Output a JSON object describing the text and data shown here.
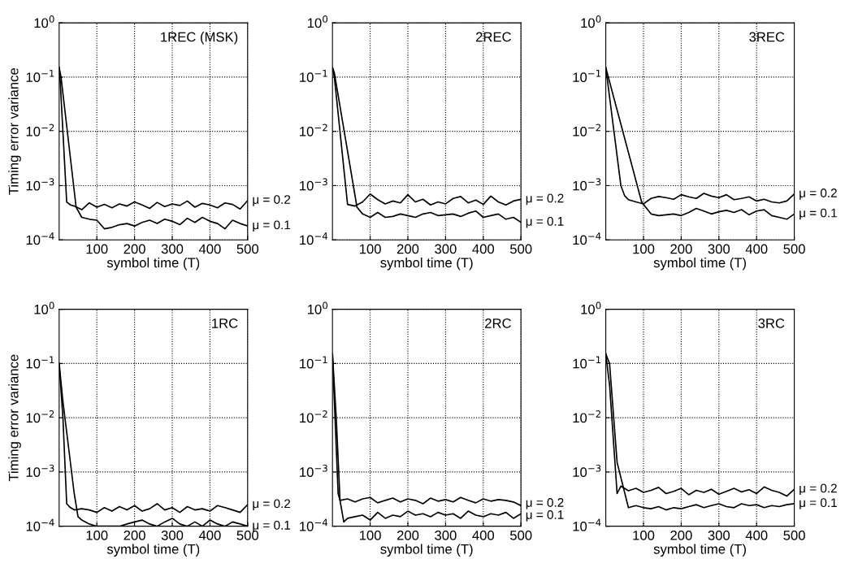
{
  "chart_data": [
    {
      "type": "line",
      "title": "1REC (MSK)",
      "xlabel": "symbol time (T)",
      "ylabel": "Timing error variance",
      "log": "y",
      "grid": true,
      "line_style": "solid",
      "xlim": [
        0,
        500
      ],
      "xticks": [
        100,
        200,
        300,
        400,
        500
      ],
      "ylim": [
        0.0001,
        1
      ],
      "yticks": [
        {
          "value": 0.0001,
          "label": "10$^{−4}$"
        },
        {
          "value": 0.001,
          "label": "10$^{−3}$"
        },
        {
          "value": 0.01,
          "label": "10$^{−2}$"
        },
        {
          "value": 0.1,
          "label": "10$^{−1}$"
        },
        {
          "value": 1,
          "label": "10$^{0}$"
        }
      ],
      "series": [
        {
          "color": "#000000",
          "x": [
            0,
            3,
            20,
            30,
            40,
            60,
            80,
            100,
            120,
            140,
            160,
            180,
            200,
            220,
            240,
            260,
            280,
            300,
            320,
            340,
            360,
            380,
            400,
            420,
            440,
            460,
            480,
            500
          ],
          "values": [
            0.15,
            0.08,
            0.0005,
            0.00044,
            0.00042,
            0.00036,
            0.00048,
            0.0004,
            0.00045,
            0.00039,
            0.00046,
            0.00042,
            0.0005,
            0.00044,
            0.00038,
            0.00049,
            0.00041,
            0.00046,
            0.00043,
            0.00052,
            0.0004,
            0.00047,
            0.00044,
            0.00039,
            0.00048,
            0.00045,
            0.00037,
            0.00053
          ]
        },
        {
          "color": "#000000",
          "x": [
            0,
            5,
            45,
            60,
            80,
            100,
            120,
            140,
            160,
            180,
            200,
            220,
            240,
            260,
            280,
            300,
            320,
            340,
            360,
            380,
            400,
            420,
            440,
            460,
            480,
            500
          ],
          "values": [
            0.15,
            0.1,
            0.0004,
            0.00026,
            0.00024,
            0.00023,
            0.00016,
            0.00017,
            0.00019,
            0.0002,
            0.00018,
            0.00021,
            0.00023,
            0.0002,
            0.00024,
            0.00022,
            0.00019,
            0.00025,
            0.00021,
            0.00026,
            0.00022,
            0.0002,
            0.00016,
            0.00023,
            0.0002,
            0.00018
          ]
        }
      ],
      "annotations": [
        "μ = 0.2",
        "μ = 0.1"
      ]
    },
    {
      "type": "line",
      "title": "2REC",
      "xlabel": "symbol time (T)",
      "log": "y",
      "grid": true,
      "line_style": "solid",
      "xlim": [
        0,
        500
      ],
      "xticks": [
        100,
        200,
        300,
        400,
        500
      ],
      "ylim": [
        0.0001,
        1
      ],
      "yticks": [
        {
          "value": 0.0001,
          "label": "10$^{−4}$"
        },
        {
          "value": 0.001,
          "label": "10$^{−3}$"
        },
        {
          "value": 0.01,
          "label": "10$^{−2}$"
        },
        {
          "value": 0.1,
          "label": "10$^{−1}$"
        },
        {
          "value": 1,
          "label": "10$^{0}$"
        }
      ],
      "series": [
        {
          "color": "#000000",
          "x": [
            0,
            5,
            40,
            60,
            80,
            100,
            120,
            140,
            160,
            180,
            200,
            220,
            240,
            260,
            280,
            300,
            320,
            340,
            360,
            380,
            400,
            420,
            440,
            460,
            480,
            500
          ],
          "values": [
            0.15,
            0.1,
            0.00045,
            0.00042,
            0.0005,
            0.0007,
            0.00055,
            0.00046,
            0.00052,
            0.00048,
            0.00068,
            0.0005,
            0.00056,
            0.00044,
            0.0005,
            0.00046,
            0.00058,
            0.00063,
            0.00048,
            0.00054,
            0.00045,
            0.00064,
            0.0005,
            0.00044,
            0.00052,
            0.00056
          ]
        },
        {
          "color": "#000000",
          "x": [
            0,
            5,
            65,
            80,
            100,
            120,
            140,
            160,
            180,
            200,
            220,
            240,
            260,
            280,
            300,
            320,
            340,
            360,
            380,
            400,
            420,
            440,
            460,
            480,
            500
          ],
          "values": [
            0.15,
            0.12,
            0.0004,
            0.0003,
            0.00026,
            0.00032,
            0.00026,
            0.00027,
            0.0003,
            0.00028,
            0.00026,
            0.0003,
            0.00032,
            0.00028,
            0.00029,
            0.0003,
            0.00027,
            0.00031,
            0.00034,
            0.00026,
            0.00028,
            0.0003,
            0.00024,
            0.00026,
            0.00021
          ]
        }
      ],
      "annotations": [
        "μ = 0.2",
        "μ = 0.1"
      ]
    },
    {
      "type": "line",
      "title": "3REC",
      "xlabel": "symbol time (T)",
      "log": "y",
      "grid": true,
      "line_style": "solid",
      "xlim": [
        0,
        500
      ],
      "xticks": [
        100,
        200,
        300,
        400,
        500
      ],
      "ylim": [
        0.0001,
        1
      ],
      "yticks": [
        {
          "value": 0.0001,
          "label": "10$^{−4}$"
        },
        {
          "value": 0.001,
          "label": "10$^{−3}$"
        },
        {
          "value": 0.01,
          "label": "10$^{−2}$"
        },
        {
          "value": 0.1,
          "label": "10$^{−1}$"
        },
        {
          "value": 1,
          "label": "10$^{0}$"
        }
      ],
      "series": [
        {
          "color": "#000000",
          "x": [
            0,
            40,
            50,
            60,
            80,
            100,
            120,
            140,
            160,
            180,
            200,
            220,
            240,
            260,
            280,
            300,
            320,
            340,
            360,
            380,
            400,
            420,
            440,
            460,
            480,
            500
          ],
          "values": [
            0.15,
            0.001,
            0.00065,
            0.00055,
            0.0005,
            0.00046,
            0.00058,
            0.00063,
            0.0006,
            0.00056,
            0.00068,
            0.00062,
            0.00058,
            0.00072,
            0.00064,
            0.0006,
            0.00068,
            0.00055,
            0.00058,
            0.00062,
            0.00052,
            0.00056,
            0.0005,
            0.00048,
            0.00052,
            0.0007
          ]
        },
        {
          "color": "#000000",
          "x": [
            0,
            95,
            100,
            120,
            140,
            160,
            180,
            200,
            220,
            240,
            260,
            280,
            300,
            320,
            340,
            360,
            380,
            400,
            420,
            440,
            460,
            480,
            500
          ],
          "values": [
            0.15,
            0.0005,
            0.00045,
            0.0003,
            0.00028,
            0.00029,
            0.0003,
            0.00028,
            0.00032,
            0.00038,
            0.00034,
            0.0003,
            0.00033,
            0.00035,
            0.00032,
            0.00036,
            0.00029,
            0.00034,
            0.00036,
            0.00028,
            0.00026,
            0.00024,
            0.0003
          ]
        }
      ],
      "annotations": [
        "μ = 0.2",
        "μ = 0.1"
      ]
    },
    {
      "type": "line",
      "title": "1RC",
      "xlabel": "symbol time (T)",
      "ylabel": "Timing error variance",
      "log": "y",
      "grid": true,
      "line_style": "solid",
      "xlim": [
        0,
        500
      ],
      "xticks": [
        100,
        200,
        300,
        400,
        500
      ],
      "ylim": [
        0.0001,
        1
      ],
      "yticks": [
        {
          "value": 0.0001,
          "label": "10$^{−4}$"
        },
        {
          "value": 0.001,
          "label": "10$^{−3}$"
        },
        {
          "value": 0.01,
          "label": "10$^{−2}$"
        },
        {
          "value": 0.1,
          "label": "10$^{−1}$"
        },
        {
          "value": 1,
          "label": "10$^{0}$"
        }
      ],
      "series": [
        {
          "color": "#000000",
          "x": [
            0,
            10,
            20,
            30,
            40,
            60,
            80,
            100,
            120,
            140,
            160,
            180,
            200,
            220,
            240,
            260,
            280,
            300,
            320,
            340,
            360,
            380,
            400,
            420,
            440,
            460,
            480,
            500
          ],
          "values": [
            0.1,
            0.01,
            0.00026,
            0.00022,
            0.0002,
            0.00021,
            0.0002,
            0.00018,
            0.00022,
            0.00019,
            0.00023,
            0.0002,
            0.00024,
            0.00019,
            0.00021,
            0.00026,
            0.0002,
            0.00022,
            0.00018,
            0.00023,
            0.0002,
            0.00021,
            0.00019,
            0.00024,
            0.00022,
            0.0002,
            0.00018,
            0.00025
          ]
        },
        {
          "color": "#000000",
          "x": [
            0,
            10,
            40,
            50,
            60,
            80,
            100,
            120,
            140,
            160,
            180,
            200,
            220,
            240,
            260,
            280,
            300,
            320,
            340,
            360,
            380,
            400,
            420,
            440,
            460,
            480,
            500
          ],
          "values": [
            0.1,
            0.02,
            0.0004,
            0.00015,
            0.00013,
            0.00011,
            0.0001,
            0.0001,
            0.0001,
            0.0001,
            0.00011,
            0.00012,
            0.00013,
            0.00011,
            0.0001,
            0.00012,
            0.00014,
            0.00011,
            0.0001,
            0.00012,
            0.0001,
            0.00013,
            0.00011,
            0.0001,
            0.00012,
            0.00011,
            0.0001
          ]
        }
      ],
      "annotations": [
        "μ = 0.2",
        "μ = 0.1"
      ]
    },
    {
      "type": "line",
      "title": "2RC",
      "xlabel": "symbol time (T)",
      "log": "y",
      "grid": true,
      "line_style": "solid",
      "xlim": [
        0,
        500
      ],
      "xticks": [
        100,
        200,
        300,
        400,
        500
      ],
      "ylim": [
        0.0001,
        1
      ],
      "yticks": [
        {
          "value": 0.0001,
          "label": "10$^{−4}$"
        },
        {
          "value": 0.001,
          "label": "10$^{−3}$"
        },
        {
          "value": 0.01,
          "label": "10$^{−2}$"
        },
        {
          "value": 0.1,
          "label": "10$^{−1}$"
        },
        {
          "value": 1,
          "label": "10$^{0}$"
        }
      ],
      "series": [
        {
          "color": "#000000",
          "x": [
            0,
            5,
            15,
            20,
            40,
            60,
            80,
            100,
            120,
            140,
            160,
            180,
            200,
            220,
            240,
            260,
            280,
            300,
            320,
            340,
            360,
            380,
            400,
            420,
            440,
            460,
            480,
            500
          ],
          "values": [
            0.15,
            0.02,
            0.0004,
            0.0003,
            0.00032,
            0.00028,
            0.00032,
            0.00034,
            0.00027,
            0.0003,
            0.00033,
            0.00028,
            0.00032,
            0.0003,
            0.00026,
            0.00033,
            0.00029,
            0.00031,
            0.00028,
            0.00034,
            0.0003,
            0.00027,
            0.00032,
            0.00029,
            0.00031,
            0.0003,
            0.00028,
            0.00024
          ]
        },
        {
          "color": "#000000",
          "x": [
            0,
            10,
            20,
            30,
            40,
            60,
            80,
            100,
            120,
            140,
            160,
            180,
            200,
            220,
            240,
            260,
            280,
            300,
            320,
            340,
            360,
            380,
            400,
            420,
            440,
            460,
            480,
            500
          ],
          "values": [
            0.15,
            0.01,
            0.0003,
            0.00012,
            0.00014,
            0.00015,
            0.00016,
            0.00013,
            0.00018,
            0.00014,
            0.00016,
            0.00015,
            0.00019,
            0.00016,
            0.00017,
            0.00015,
            0.00018,
            0.00016,
            0.00017,
            0.00014,
            0.00019,
            0.00016,
            0.00015,
            0.00017,
            0.00016,
            0.00018,
            0.00014,
            0.00017
          ]
        }
      ],
      "annotations": [
        "μ = 0.2",
        "μ = 0.1"
      ]
    },
    {
      "type": "line",
      "title": "3RC",
      "xlabel": "symbol time (T)",
      "log": "y",
      "grid": true,
      "line_style": "solid",
      "xlim": [
        0,
        500
      ],
      "xticks": [
        100,
        200,
        300,
        400,
        500
      ],
      "ylim": [
        0.0001,
        1
      ],
      "yticks": [
        {
          "value": 0.0001,
          "label": "10$^{−4}$"
        },
        {
          "value": 0.001,
          "label": "10$^{−3}$"
        },
        {
          "value": 0.01,
          "label": "10$^{−2}$"
        },
        {
          "value": 0.1,
          "label": "10$^{−1}$"
        },
        {
          "value": 1,
          "label": "10$^{0}$"
        }
      ],
      "series": [
        {
          "color": "#000000",
          "x": [
            0,
            10,
            30,
            40,
            60,
            80,
            100,
            120,
            140,
            160,
            180,
            200,
            220,
            240,
            260,
            280,
            300,
            320,
            340,
            360,
            380,
            400,
            420,
            440,
            460,
            480,
            500
          ],
          "values": [
            0.15,
            0.04,
            0.0004,
            0.00055,
            0.00045,
            0.0005,
            0.00042,
            0.00046,
            0.00052,
            0.0004,
            0.00044,
            0.0005,
            0.00038,
            0.00046,
            0.00042,
            0.00048,
            0.00039,
            0.00044,
            0.0005,
            0.00043,
            0.00047,
            0.0004,
            0.00053,
            0.00046,
            0.00042,
            0.00036,
            0.00048
          ]
        },
        {
          "color": "#000000",
          "x": [
            0,
            10,
            30,
            60,
            80,
            100,
            120,
            140,
            160,
            180,
            200,
            220,
            240,
            260,
            280,
            300,
            320,
            340,
            360,
            380,
            400,
            420,
            440,
            460,
            480,
            500
          ],
          "values": [
            0.15,
            0.1,
            0.0015,
            0.00022,
            0.00024,
            0.00022,
            0.00021,
            0.00023,
            0.0002,
            0.00022,
            0.00021,
            0.00023,
            0.00025,
            0.00022,
            0.00024,
            0.00026,
            0.00023,
            0.00022,
            0.00026,
            0.00024,
            0.00025,
            0.00022,
            0.00024,
            0.00023,
            0.00025,
            0.00026
          ]
        }
      ],
      "annotations": [
        "μ = 0.2",
        "μ = 0.1"
      ]
    }
  ]
}
